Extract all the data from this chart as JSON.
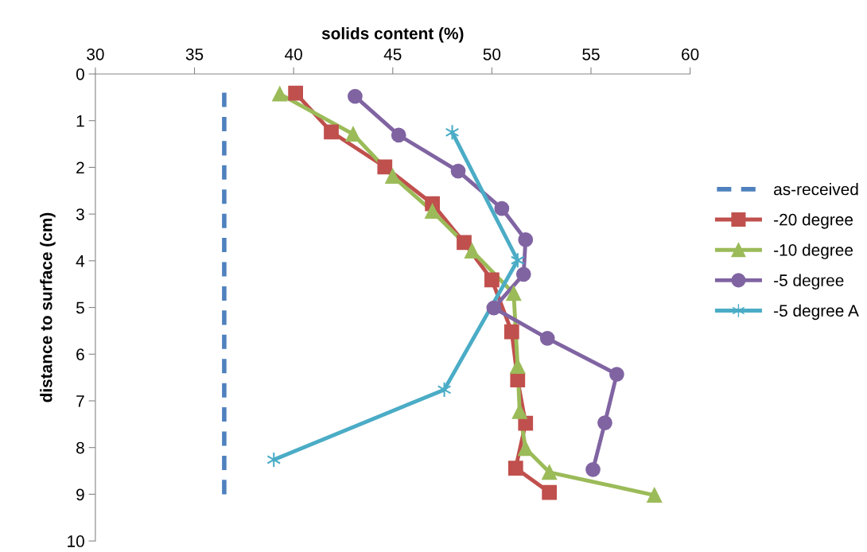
{
  "chart_data": {
    "type": "line",
    "xlabel": "solids content (%)",
    "ylabel": "distance to surface (cm)",
    "xlim": [
      30,
      60
    ],
    "xticks": [
      30,
      35,
      40,
      45,
      50,
      55,
      60
    ],
    "ylim": [
      10,
      0
    ],
    "yticks": [
      0,
      1,
      2,
      3,
      4,
      5,
      6,
      7,
      8,
      9,
      10
    ],
    "grid": false,
    "legend": "right",
    "series": [
      {
        "name": "as-received",
        "color": "#4f81bd",
        "line_style": "dashed",
        "marker": "none",
        "x": [
          36.5,
          36.5
        ],
        "values": [
          0.4,
          9.0
        ]
      },
      {
        "name": "-20 degree",
        "color": "#c0504d",
        "marker": "square",
        "x": [
          40.1,
          41.9,
          44.6,
          47.0,
          48.6,
          50.0,
          51.0,
          51.3,
          51.7,
          51.2,
          52.9
        ],
        "values": [
          0.41,
          1.24,
          1.99,
          2.78,
          3.61,
          4.41,
          5.52,
          6.55,
          7.48,
          8.44,
          8.96
        ]
      },
      {
        "name": "-10 degree",
        "color": "#9bbb59",
        "marker": "triangle",
        "x": [
          39.3,
          43.0,
          45.0,
          47.0,
          49.0,
          51.1,
          51.3,
          51.4,
          51.7,
          52.9,
          58.2
        ],
        "values": [
          0.43,
          1.29,
          2.19,
          2.94,
          3.79,
          4.7,
          6.26,
          7.23,
          8.02,
          8.53,
          9.02
        ]
      },
      {
        "name": "-5 degree",
        "color": "#8064a2",
        "marker": "circle",
        "x": [
          43.1,
          45.3,
          48.3,
          50.5,
          51.7,
          51.6,
          50.1,
          52.8,
          56.3,
          55.7,
          55.1
        ],
        "values": [
          0.48,
          1.31,
          2.08,
          2.88,
          3.55,
          4.29,
          5.01,
          5.66,
          6.43,
          7.47,
          8.47
        ]
      },
      {
        "name": "-5 degree A",
        "color": "#4bacc6",
        "marker": "cross",
        "x": [
          48.0,
          51.3,
          47.6,
          39.0
        ],
        "values": [
          1.25,
          3.99,
          6.76,
          8.26
        ]
      }
    ]
  }
}
